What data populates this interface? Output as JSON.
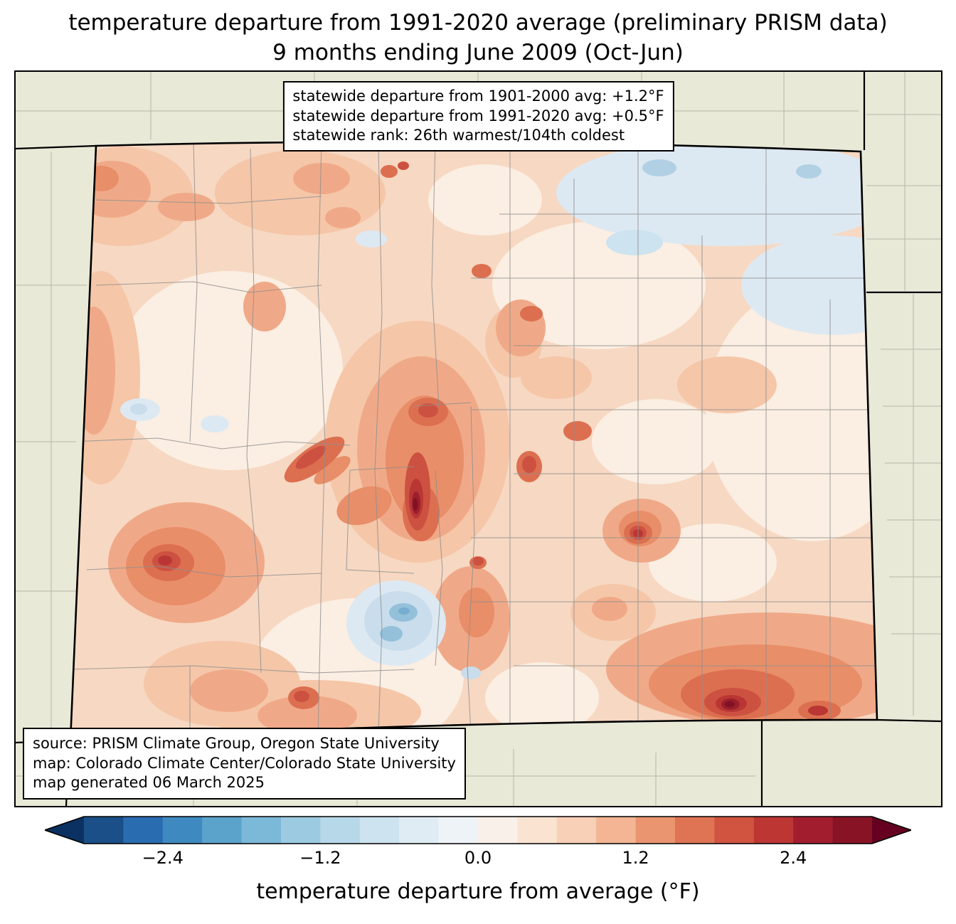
{
  "title": {
    "line1": "temperature departure from 1991-2020 average (preliminary PRISM data)",
    "line2": "9 months ending June 2009 (Oct-Jun)"
  },
  "stats_box": {
    "line1": "statewide departure from 1901-2000 avg: +1.2°F",
    "line2": "statewide departure from 1991-2020 avg: +0.5°F",
    "line3": "statewide rank: 26th warmest/104th coldest"
  },
  "source_box": {
    "line1": "source: PRISM Climate Group, Oregon State University",
    "line2": "map: Colorado Climate Center/Colorado State University",
    "line3": "map generated 06 March 2025"
  },
  "map": {
    "region": "Colorado",
    "background_color": "#e9e9d8",
    "base_fill": "#f7d8c2",
    "state_border_color": "#000000",
    "county_line_color": "#8f8f8f"
  },
  "colorbar": {
    "label": "temperature departure from average (°F)",
    "min": -3.0,
    "max": 3.0,
    "step": 0.3,
    "tick_values": [
      -2.4,
      -1.2,
      0.0,
      1.2,
      2.4
    ],
    "tick_labels": [
      "−2.4",
      "−1.2",
      "0.0",
      "1.2",
      "2.4"
    ],
    "under_color": "#0a3161",
    "over_color": "#660020",
    "segment_colors": [
      "#1a4f87",
      "#2a6cb0",
      "#3e8ac0",
      "#5ba3cb",
      "#7cb8d8",
      "#9ccae1",
      "#b7d8e9",
      "#cde3ef",
      "#dfecf4",
      "#eef3f7",
      "#faf0ea",
      "#fbe3d2",
      "#f8d0b7",
      "#f3b593",
      "#ea9570",
      "#df7454",
      "#d05440",
      "#bd3634",
      "#a21e2e",
      "#871325"
    ]
  }
}
